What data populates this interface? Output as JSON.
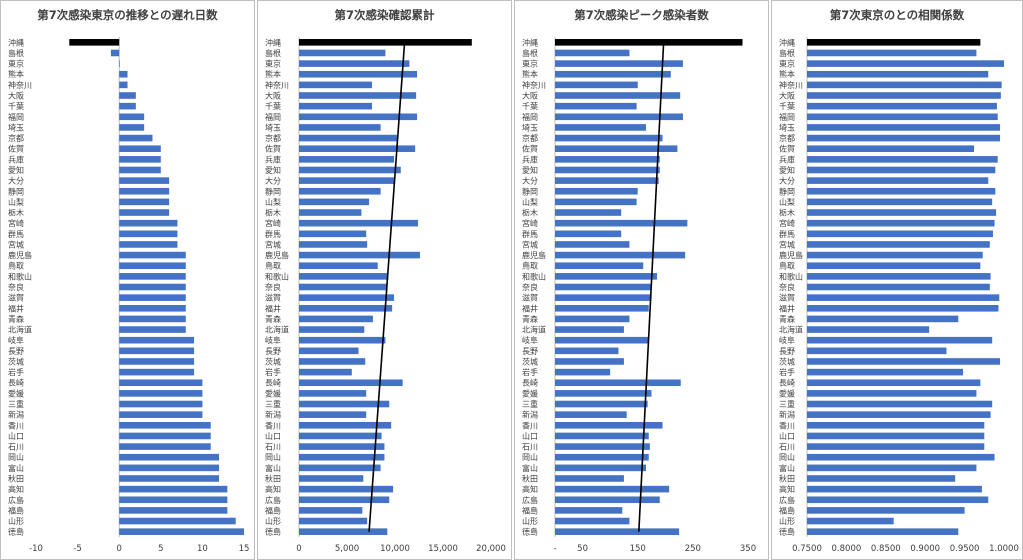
{
  "chart_data": [
    {
      "type": "bar",
      "title": "第7次感染東京の推移との遅れ日数",
      "categories": [
        "沖縄",
        "島根",
        "東京",
        "熊本",
        "神奈川",
        "大阪",
        "千葉",
        "福岡",
        "埼玉",
        "京都",
        "佐賀",
        "兵庫",
        "愛知",
        "大分",
        "静岡",
        "山梨",
        "栃木",
        "宮崎",
        "群馬",
        "宮城",
        "鹿児島",
        "鳥取",
        "和歌山",
        "奈良",
        "滋賀",
        "福井",
        "青森",
        "北海道",
        "岐阜",
        "長野",
        "茨城",
        "岩手",
        "長崎",
        "愛媛",
        "三重",
        "新潟",
        "香川",
        "山口",
        "石川",
        "岡山",
        "富山",
        "秋田",
        "高知",
        "広島",
        "福島",
        "山形",
        "徳島"
      ],
      "values": [
        -6,
        -1,
        0,
        1,
        1,
        2,
        2,
        3,
        3,
        4,
        5,
        5,
        5,
        6,
        6,
        6,
        6,
        7,
        7,
        7,
        8,
        8,
        8,
        8,
        8,
        8,
        8,
        8,
        9,
        9,
        9,
        9,
        10,
        10,
        10,
        10,
        11,
        11,
        11,
        12,
        12,
        12,
        13,
        13,
        13,
        14,
        15
      ],
      "xlim": [
        -10,
        15
      ],
      "xticks": [
        -10,
        -5,
        0,
        5,
        10,
        15
      ],
      "highlight": "沖縄",
      "colors": {
        "bar": "#4472C4",
        "highlight": "#000000"
      }
    },
    {
      "type": "bar",
      "title": "第7次感染確認累計",
      "categories": [
        "沖縄",
        "島根",
        "東京",
        "熊本",
        "神奈川",
        "大阪",
        "千葉",
        "福岡",
        "埼玉",
        "京都",
        "佐賀",
        "兵庫",
        "愛知",
        "大分",
        "静岡",
        "山梨",
        "栃木",
        "宮崎",
        "群馬",
        "宮城",
        "鹿児島",
        "鳥取",
        "和歌山",
        "奈良",
        "滋賀",
        "福井",
        "青森",
        "北海道",
        "岐阜",
        "長野",
        "茨城",
        "岩手",
        "長崎",
        "愛媛",
        "三重",
        "新潟",
        "香川",
        "山口",
        "石川",
        "岡山",
        "富山",
        "秋田",
        "高知",
        "広島",
        "福島",
        "山形",
        "徳島"
      ],
      "values": [
        18000,
        9000,
        11500,
        12300,
        7600,
        12200,
        7600,
        12300,
        8500,
        10200,
        12100,
        9900,
        10600,
        10000,
        8500,
        7300,
        6500,
        12400,
        7000,
        7100,
        12600,
        8200,
        9300,
        9200,
        9900,
        9700,
        7700,
        6800,
        9000,
        6200,
        6900,
        5500,
        10800,
        7000,
        9400,
        7000,
        9600,
        8600,
        8900,
        8900,
        8500,
        6700,
        9800,
        9400,
        6600,
        7100,
        9200
      ],
      "xlim": [
        0,
        20000
      ],
      "xticks": [
        0,
        5000,
        10000,
        15000,
        20000
      ],
      "xtick_labels": [
        "0",
        "5,000",
        "10,000",
        "15,000",
        "20,000"
      ],
      "trendline": {
        "first": 11000,
        "last": 7300
      },
      "highlight": "沖縄",
      "colors": {
        "bar": "#4472C4",
        "highlight": "#000000",
        "trend": "#000000"
      }
    },
    {
      "type": "bar",
      "title": "第7次感染ピーク感染者数",
      "categories": [
        "沖縄",
        "島根",
        "東京",
        "熊本",
        "神奈川",
        "大阪",
        "千葉",
        "福岡",
        "埼玉",
        "京都",
        "佐賀",
        "兵庫",
        "愛知",
        "大分",
        "静岡",
        "山梨",
        "栃木",
        "宮崎",
        "群馬",
        "宮城",
        "鹿児島",
        "鳥取",
        "和歌山",
        "奈良",
        "滋賀",
        "福井",
        "青森",
        "北海道",
        "岐阜",
        "長野",
        "茨城",
        "岩手",
        "長崎",
        "愛媛",
        "三重",
        "新潟",
        "香川",
        "山口",
        "石川",
        "岡山",
        "富山",
        "秋田",
        "高知",
        "広島",
        "福島",
        "山形",
        "徳島"
      ],
      "values": [
        340,
        135,
        232,
        210,
        150,
        227,
        148,
        232,
        165,
        195,
        222,
        190,
        190,
        188,
        150,
        148,
        120,
        240,
        120,
        135,
        236,
        160,
        185,
        175,
        175,
        170,
        135,
        125,
        170,
        115,
        125,
        100,
        228,
        175,
        168,
        130,
        195,
        170,
        172,
        170,
        165,
        125,
        207,
        190,
        122,
        135,
        225
      ],
      "xlim": [
        0,
        350
      ],
      "xticks": [
        0,
        50,
        150,
        250,
        350
      ],
      "xtick_labels": [
        "-",
        "50",
        "150",
        "250",
        "350"
      ],
      "trendline": {
        "first": 197,
        "last": 152
      },
      "highlight": "沖縄",
      "colors": {
        "bar": "#4472C4",
        "highlight": "#000000",
        "trend": "#000000"
      }
    },
    {
      "type": "bar",
      "title": "第7次東京のとの相関係数",
      "categories": [
        "沖縄",
        "島根",
        "東京",
        "熊本",
        "神奈川",
        "大阪",
        "千葉",
        "福岡",
        "埼玉",
        "京都",
        "佐賀",
        "兵庫",
        "愛知",
        "大分",
        "静岡",
        "山梨",
        "栃木",
        "宮崎",
        "群馬",
        "宮城",
        "鹿児島",
        "鳥取",
        "和歌山",
        "奈良",
        "滋賀",
        "福井",
        "青森",
        "北海道",
        "岐阜",
        "長野",
        "茨城",
        "岩手",
        "長崎",
        "愛媛",
        "三重",
        "新潟",
        "香川",
        "山口",
        "石川",
        "岡山",
        "富山",
        "秋田",
        "高知",
        "広島",
        "福島",
        "山形",
        "徳島"
      ],
      "values": [
        0.97,
        0.965,
        1.0,
        0.98,
        0.997,
        0.996,
        0.991,
        0.992,
        0.995,
        0.995,
        0.962,
        0.992,
        0.989,
        0.98,
        0.989,
        0.985,
        0.99,
        0.988,
        0.986,
        0.982,
        0.973,
        0.97,
        0.983,
        0.982,
        0.994,
        0.993,
        0.942,
        0.905,
        0.985,
        0.927,
        0.995,
        0.948,
        0.97,
        0.965,
        0.985,
        0.983,
        0.975,
        0.975,
        0.975,
        0.988,
        0.965,
        0.938,
        0.972,
        0.98,
        0.95,
        0.86,
        0.942
      ],
      "xlim": [
        0.75,
        1.0
      ],
      "xticks": [
        0.75,
        0.8,
        0.85,
        0.9,
        0.95,
        1.0
      ],
      "xtick_labels": [
        "0.7500",
        "0.8000",
        "0.8500",
        "0.9000",
        "0.9500",
        "1.0000"
      ],
      "highlight": "沖縄",
      "colors": {
        "bar": "#4472C4",
        "highlight": "#000000"
      }
    }
  ],
  "theme": {
    "frame": "#BFBFBF",
    "text": "#404040",
    "axis": "#BFBFBF"
  }
}
